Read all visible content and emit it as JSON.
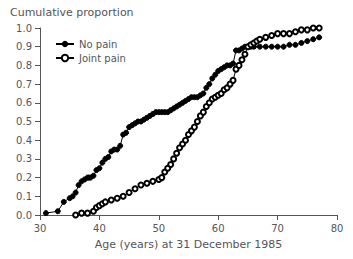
{
  "chart_data": {
    "type": "line",
    "xlabel": "Age (years) at 31 December 1985",
    "ylabel": "Cumulative proportion",
    "xlim": [
      30,
      80
    ],
    "ylim": [
      0,
      1
    ],
    "xticks": [
      30,
      40,
      50,
      60,
      70,
      80
    ],
    "yticks": [
      {
        "value": 0,
        "label": "0.0"
      },
      0.1,
      0.2,
      0.3,
      0.4,
      0.5,
      0.6,
      0.7,
      0.8,
      0.9,
      {
        "value": 1,
        "label": "1.0"
      }
    ],
    "grid": false,
    "legend": "upper left",
    "series": [
      {
        "name": "No pain",
        "color": "#000000",
        "marker": "circle",
        "x": [
          31,
          33,
          34,
          35,
          35.5,
          36,
          36.5,
          37,
          37.5,
          38,
          38.2,
          38.5,
          39,
          39.5,
          40,
          40.5,
          41,
          41.5,
          42,
          42.5,
          43,
          43.5,
          44,
          44.5,
          45,
          45.5,
          46,
          46.5,
          47,
          47.5,
          48,
          48.5,
          49,
          49.5,
          50,
          50.5,
          51,
          51.5,
          52,
          52.5,
          53,
          53.5,
          54,
          54.5,
          55,
          55.5,
          56,
          56.5,
          57,
          57.5,
          58,
          58.5,
          59,
          59.5,
          60,
          60.5,
          61,
          61.5,
          62,
          62.5,
          63,
          63.5,
          64,
          64.5,
          65,
          65.5,
          66,
          67,
          68,
          69,
          70,
          71,
          72,
          73,
          74,
          75,
          76,
          77
        ],
        "values": [
          0.01,
          0.02,
          0.07,
          0.09,
          0.1,
          0.12,
          0.16,
          0.18,
          0.19,
          0.2,
          0.2,
          0.2,
          0.21,
          0.24,
          0.25,
          0.28,
          0.3,
          0.31,
          0.34,
          0.35,
          0.35,
          0.37,
          0.43,
          0.44,
          0.47,
          0.48,
          0.49,
          0.5,
          0.5,
          0.51,
          0.52,
          0.53,
          0.54,
          0.55,
          0.55,
          0.55,
          0.55,
          0.55,
          0.56,
          0.57,
          0.58,
          0.59,
          0.6,
          0.61,
          0.62,
          0.63,
          0.63,
          0.63,
          0.64,
          0.65,
          0.68,
          0.7,
          0.73,
          0.75,
          0.77,
          0.78,
          0.79,
          0.8,
          0.8,
          0.81,
          0.88,
          0.88,
          0.89,
          0.9,
          0.9,
          0.9,
          0.9,
          0.9,
          0.9,
          0.9,
          0.9,
          0.9,
          0.91,
          0.91,
          0.92,
          0.93,
          0.94,
          0.95
        ]
      },
      {
        "name": "Joint pain",
        "color": "#000000",
        "marker": "emptyCircle",
        "x": [
          36,
          37,
          38,
          39,
          39.5,
          40,
          40.5,
          41,
          42,
          43,
          44,
          45,
          46,
          47,
          48,
          49,
          50,
          50.5,
          51,
          51.5,
          52,
          52.5,
          53,
          53.5,
          54,
          54.5,
          55,
          55.5,
          56,
          56.5,
          57,
          57.5,
          58,
          58.5,
          59,
          59.5,
          60,
          60.5,
          61,
          61.5,
          62,
          62.5,
          63,
          63.5,
          64,
          64.5,
          65,
          65.5,
          66,
          66.5,
          67,
          68,
          69,
          70,
          71,
          72,
          73,
          74,
          75,
          76,
          77
        ],
        "values": [
          0.0,
          0.01,
          0.01,
          0.02,
          0.04,
          0.05,
          0.06,
          0.07,
          0.08,
          0.09,
          0.1,
          0.12,
          0.14,
          0.16,
          0.17,
          0.18,
          0.19,
          0.2,
          0.23,
          0.25,
          0.27,
          0.3,
          0.33,
          0.36,
          0.38,
          0.4,
          0.43,
          0.45,
          0.47,
          0.5,
          0.53,
          0.55,
          0.58,
          0.6,
          0.62,
          0.63,
          0.64,
          0.65,
          0.67,
          0.68,
          0.7,
          0.72,
          0.78,
          0.8,
          0.83,
          0.86,
          0.9,
          0.91,
          0.92,
          0.93,
          0.94,
          0.95,
          0.96,
          0.97,
          0.97,
          0.97,
          0.98,
          0.99,
          0.99,
          1.0,
          1.0
        ]
      }
    ]
  }
}
